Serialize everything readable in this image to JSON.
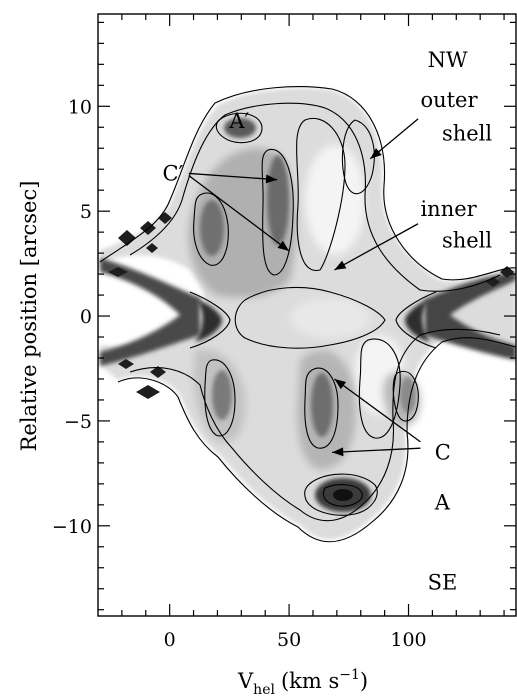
{
  "chart_data": {
    "type": "heatmap",
    "subtype": "position-velocity diagram (greyscale image with contours)",
    "xlabel_main": "V",
    "xlabel_sub": "hel",
    "xlabel_unit": "(km s",
    "xlabel_exp": "−1",
    "xlabel_close": ")",
    "ylabel": "Relative position [arcsec]",
    "xlim": [
      -30,
      145
    ],
    "ylim": [
      -14.3,
      14.4
    ],
    "xticks": [
      0,
      50,
      100
    ],
    "xtick_labels": [
      "0",
      "50",
      "100"
    ],
    "yticks": [
      -10,
      -5,
      0,
      5,
      10
    ],
    "ytick_labels": [
      "−10",
      "−5",
      "0",
      "5",
      "10"
    ],
    "grid": false,
    "colors": {
      "ink": "#000000",
      "background": "#ffffff",
      "grey_light": "#d9d9d9",
      "grey_mid": "#9a9a9a",
      "grey_dark": "#555555",
      "grey_darkest": "#2a2a2a"
    },
    "labels": {
      "nw": "NW",
      "se": "SE",
      "a_prime": "A′",
      "c_prime": "C′",
      "outer1": "outer",
      "outer2": "shell",
      "inner1": "inner",
      "inner2": "shell",
      "c": "C",
      "a": "A"
    },
    "annotations": [
      {
        "key": "nw",
        "x": 108,
        "y": 12.2
      },
      {
        "key": "se",
        "x": 108,
        "y": -12.7
      },
      {
        "key": "a_prime",
        "x": 25,
        "y": 9.3
      },
      {
        "key": "c_prime",
        "x": -3,
        "y": 6.8
      },
      {
        "key": "outer1",
        "x": 105,
        "y": 10.3
      },
      {
        "key": "outer2",
        "x": 114,
        "y": 8.7
      },
      {
        "key": "inner1",
        "x": 105,
        "y": 5.1
      },
      {
        "key": "inner2",
        "x": 114,
        "y": 3.6
      },
      {
        "key": "c",
        "x": 111,
        "y": -6.5
      },
      {
        "key": "a",
        "x": 111,
        "y": -8.9
      }
    ],
    "arrows": [
      {
        "from": [
          104,
          9.4
        ],
        "to": [
          84,
          7.5
        ]
      },
      {
        "from": [
          104,
          4.4
        ],
        "to": [
          69,
          2.2
        ]
      },
      {
        "from": [
          8,
          6.8
        ],
        "to": [
          45,
          6.5
        ]
      },
      {
        "from": [
          8,
          6.7
        ],
        "to": [
          50,
          3.1
        ]
      },
      {
        "from": [
          105,
          -6.0
        ],
        "to": [
          69,
          -3.0
        ]
      },
      {
        "from": [
          105,
          -6.3
        ],
        "to": [
          68,
          -6.5
        ]
      }
    ],
    "features": [
      {
        "name": "A",
        "v": 75,
        "pos": -8.8,
        "note": "darkest knot"
      },
      {
        "name": "A′",
        "v": 28,
        "pos": 8.4,
        "note": "dark knot"
      },
      {
        "name": "C′",
        "v": 47,
        "pos": 5.0,
        "note": "dark ridge"
      },
      {
        "name": "C",
        "v": 66,
        "pos": -4.0,
        "note": "dark ridge"
      }
    ]
  }
}
